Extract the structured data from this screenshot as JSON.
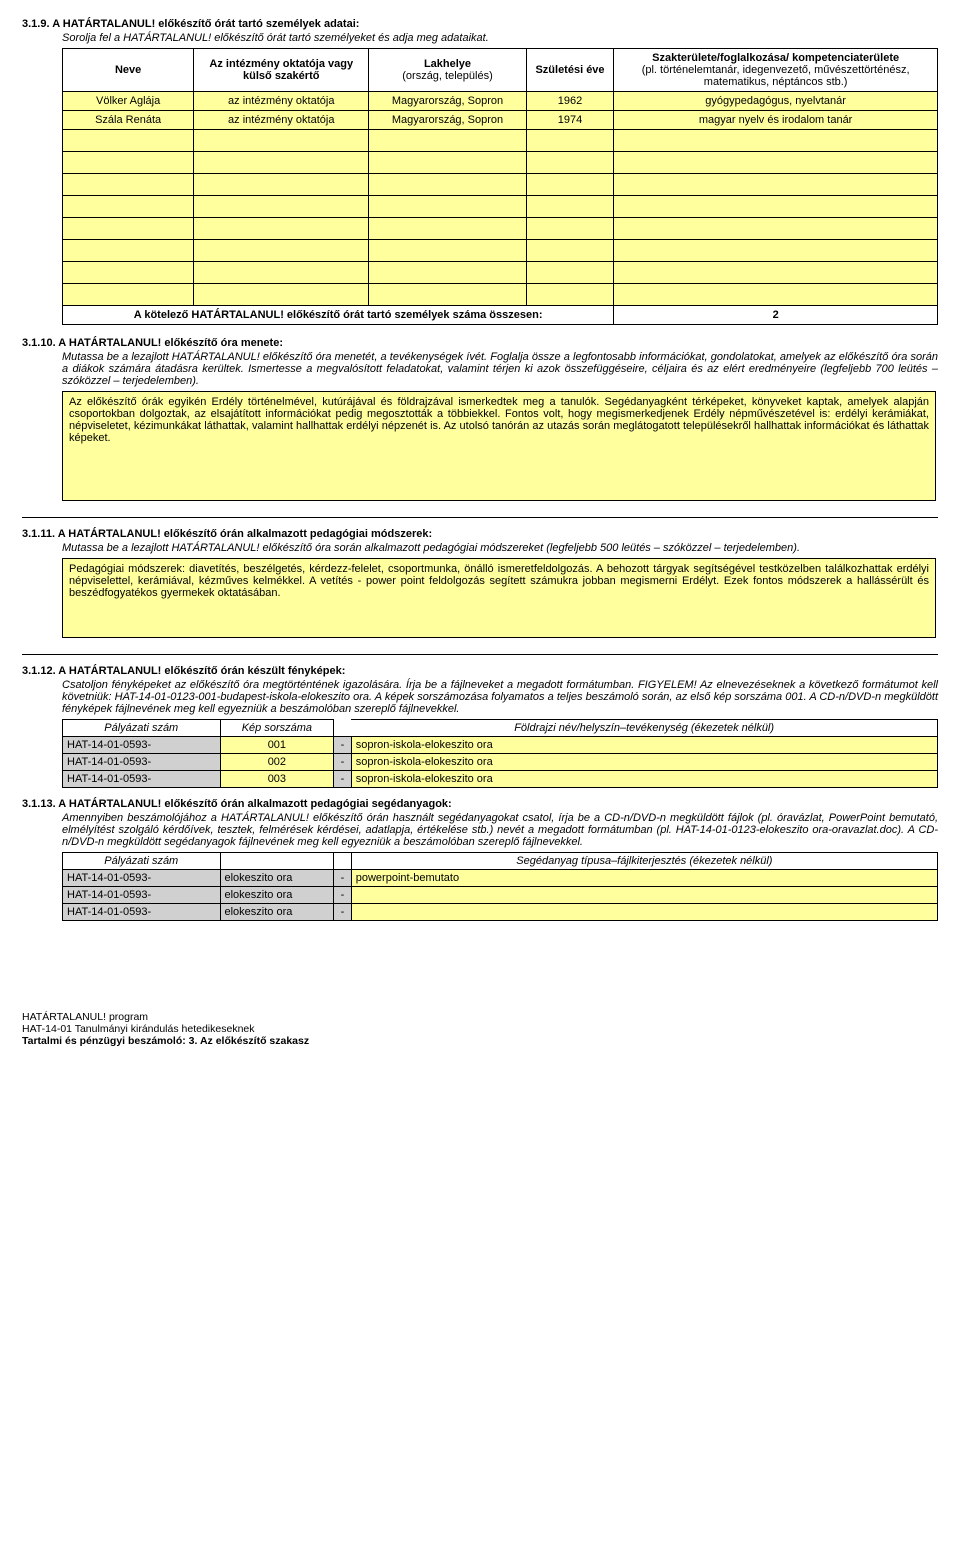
{
  "s319": {
    "num": "3.1.9.",
    "title": "A HATÁRTALANUL! előkészítő órát tartó személyek adatai:",
    "desc": "Sorolja fel a HATÁRTALANUL! előkészítő órát tartó személyeket és adja meg adataikat.",
    "headers": {
      "name": "Neve",
      "teacher": "Az intézmény oktatója vagy külső szakértő",
      "place": "Lakhelye",
      "place_sub": "(ország, település)",
      "birth": "Születési éve",
      "field": "Szakterülete/foglalkozása/ kompetenciaterülete",
      "field_sub": "(pl. történelemtanár, idegenvezető, művészettörténész, matematikus, néptáncos stb.)"
    },
    "rows": [
      {
        "name": "Völker Aglája",
        "teacher": "az intézmény oktatója",
        "place": "Magyarország, Sopron",
        "birth": "1962",
        "field": "gyógypedagógus, nyelvtanár"
      },
      {
        "name": "Szála Renáta",
        "teacher": "az intézmény oktatója",
        "place": "Magyarország, Sopron",
        "birth": "1974",
        "field": "magyar nyelv és irodalom tanár"
      }
    ],
    "empty_rows": 8,
    "sum_label": "A kötelező HATÁRTALANUL! előkészítő órát tartó személyek száma összesen:",
    "sum_value": "2"
  },
  "s3110": {
    "num": "3.1.10.",
    "title": "A HATÁRTALANUL! előkészítő óra menete:",
    "desc": "Mutassa be a lezajlott HATÁRTALANUL! előkészítő óra menetét, a tevékenységek ívét. Foglalja össze a legfontosabb információkat, gondolatokat, amelyek az előkészítő óra során a diákok számára átadásra kerültek. Ismertesse a megvalósított feladatokat, valamint térjen ki azok összefüggéseire, céljaira és az elért eredményeire (legfeljebb 700 leütés – szóközzel – terjedelemben).",
    "text": "Az előkészítő órák egyikén Erdély történelmével, kutúrájával és földrajzával ismerkedtek meg a tanulók. Segédanyagként térképeket, könyveket kaptak, amelyek alapján csoportokban dolgoztak, az elsajátított információkat pedig megosztották a többiekkel. Fontos volt, hogy megismerkedjenek Erdély népművészetével is: erdélyi kerámiákat, népviseletet, kézimunkákat láthattak, valamint hallhattak erdélyi népzenét is. Az utolsó tanórán az utazás során meglátogatott településekről hallhattak információkat és láthattak képeket."
  },
  "s3111": {
    "num": "3.1.11.",
    "title": "A HATÁRTALANUL! előkészítő órán alkalmazott pedagógiai módszerek:",
    "desc": "Mutassa be a lezajlott HATÁRTALANUL! előkészítő óra során alkalmazott pedagógiai módszereket (legfeljebb 500 leütés – szóközzel – terjedelemben).",
    "text": "Pedagógiai módszerek: diavetítés, beszélgetés, kérdezz-felelet, csoportmunka, önálló ismeretfeldolgozás. A behozott tárgyak segítségével testközelben találkozhattak erdélyi népviselettel, kerámiával, kézműves kelmékkel. A vetítés - power point feldolgozás segített számukra jobban megismerni Erdélyt. Ezek fontos módszerek a hallássérült és beszédfogyatékos gyermekek oktatásában."
  },
  "s3112": {
    "num": "3.1.12.",
    "title": "A HATÁRTALANUL! előkészítő órán készült fényképek:",
    "desc": "Csatoljon fényképeket az előkészítő óra megtörténtének igazolására. Írja be a fájlneveket a megadott formátumban. FIGYELEM! Az elnevezéseknek a következő formátumot kell követniük: HAT-14-01-0123-001-budapest-iskola-elokeszito ora. A képek sorszámozása folyamatos a teljes beszámoló során, az első kép sorszáma 001. A CD-n/DVD-n megküldött fényképek fájlnevének meg kell egyezniük a beszámolóban szereplő fájlnevekkel.",
    "head": {
      "c1": "Pályázati szám",
      "c2": "Kép sorszáma",
      "c3": "Földrajzi név/helyszín–tevékenység (ékezetek nélkül)"
    },
    "rows": [
      {
        "id": "HAT-14-01-0593-",
        "n": "001",
        "file": "sopron-iskola-elokeszito ora"
      },
      {
        "id": "HAT-14-01-0593-",
        "n": "002",
        "file": "sopron-iskola-elokeszito ora"
      },
      {
        "id": "HAT-14-01-0593-",
        "n": "003",
        "file": "sopron-iskola-elokeszito ora"
      }
    ]
  },
  "s3113": {
    "num": "3.1.13.",
    "title": "A HATÁRTALANUL! előkészítő órán alkalmazott pedagógiai segédanyagok:",
    "desc": "Amennyiben beszámolójához a HATÁRTALANUL! előkészítő órán használt segédanyagokat csatol, írja be a CD-n/DVD-n megküldött fájlok (pl. óravázlat, PowerPoint bemutató, elmélyítést szolgáló kérdőívek, tesztek, felmérések kérdései, adatlapja, értékelése stb.) nevét a megadott formátumban (pl. HAT-14-01-0123-elokeszito ora-oravazlat.doc). A CD-n/DVD-n megküldött segédanyagok fájlnevének meg kell egyezniük a beszámolóban szereplő fájlnevekkel.",
    "head": {
      "c1": "Pályázati szám",
      "c2": "Segédanyag típusa–fájlkiterjesztés (ékezetek nélkül)"
    },
    "rows": [
      {
        "id": "HAT-14-01-0593-",
        "t": "elokeszito ora",
        "file": "powerpoint-bemutato"
      },
      {
        "id": "HAT-14-01-0593-",
        "t": "elokeszito ora",
        "file": ""
      },
      {
        "id": "HAT-14-01-0593-",
        "t": "elokeszito ora",
        "file": ""
      }
    ]
  },
  "footer": {
    "l1": "HATÁRTALANUL! program",
    "l2": "HAT-14-01 Tanulmányi kirándulás hetedikeseknek",
    "l3": "Tartalmi és pénzügyi beszámoló: 3. Az előkészítő szakasz"
  },
  "dash": "-"
}
